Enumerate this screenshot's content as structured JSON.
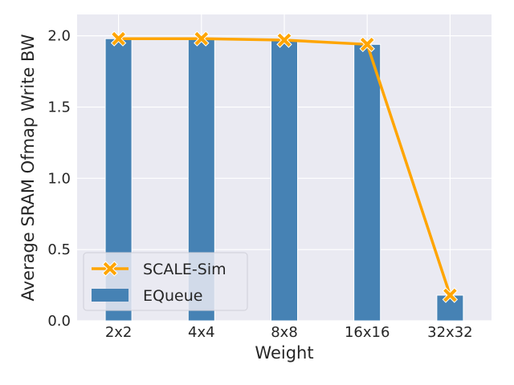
{
  "chart_data": {
    "type": "bar",
    "title": "",
    "xlabel": "Weight",
    "ylabel": "Average SRAM Ofmap Write BW",
    "categories": [
      "2x2",
      "4x4",
      "8x8",
      "16x16",
      "32x32"
    ],
    "ylim": [
      0,
      2.15
    ],
    "yticks": [
      0.0,
      0.5,
      1.0,
      1.5,
      2.0
    ],
    "ytick_labels": [
      "0.0",
      "0.5",
      "1.0",
      "1.5",
      "2.0"
    ],
    "grid": true,
    "legend_position": "lower-left",
    "series": [
      {
        "name": "SCALE-Sim",
        "kind": "line",
        "marker": "x",
        "color": "#FFA500",
        "values": [
          1.98,
          1.98,
          1.97,
          1.94,
          0.18
        ]
      },
      {
        "name": "EQueue",
        "kind": "bar",
        "color": "#4682B4",
        "values": [
          1.98,
          1.98,
          1.97,
          1.94,
          0.18
        ]
      }
    ],
    "colors": {
      "plot_background": "#EAEAF2",
      "grid": "#FFFFFF",
      "text": "#262626"
    }
  }
}
